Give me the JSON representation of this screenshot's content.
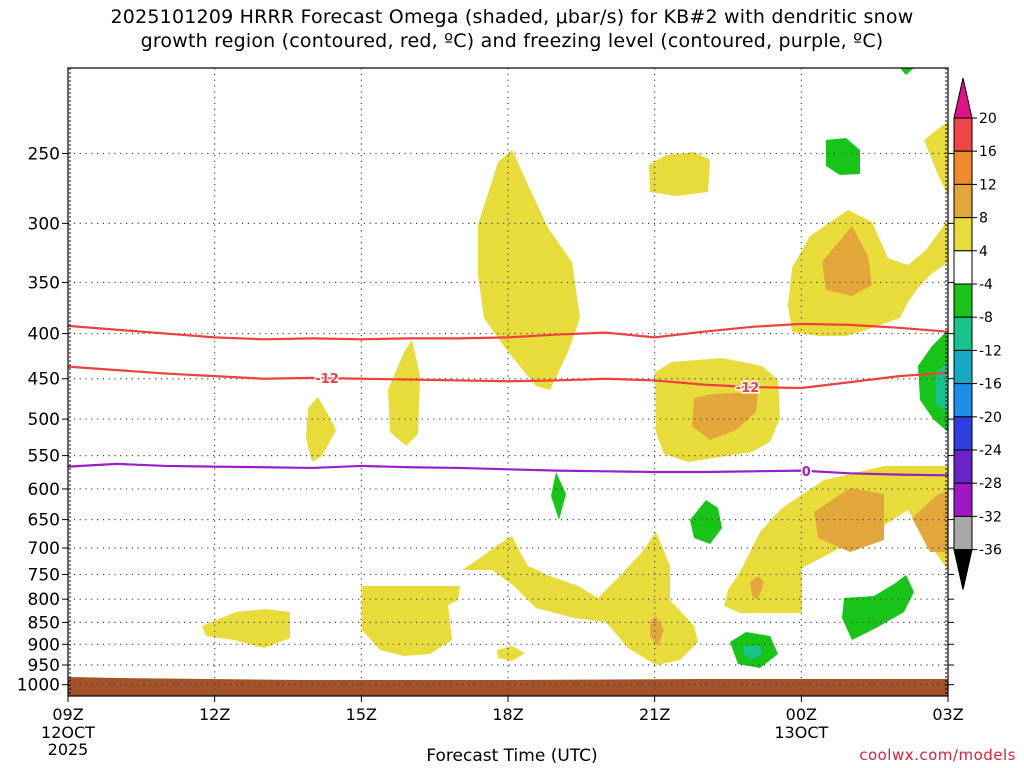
{
  "title": {
    "line1": "2025101209 HRRR Forecast Omega (shaded, μbar/s) for KB#2 with dendritic snow",
    "line2": "growth region (contoured, red, ºC) and freezing level (contoured, purple, ºC)"
  },
  "credit": "coolwx.com/models",
  "chart_data": {
    "type": "time-height contour",
    "xlabel": "Forecast Time (UTC)",
    "ylabel": "",
    "x_ticks": [
      {
        "hour": 0,
        "label": "09Z",
        "sub1": "12OCT",
        "sub2": "2025"
      },
      {
        "hour": 3,
        "label": "12Z",
        "sub1": "",
        "sub2": ""
      },
      {
        "hour": 6,
        "label": "15Z",
        "sub1": "",
        "sub2": ""
      },
      {
        "hour": 9,
        "label": "18Z",
        "sub1": "",
        "sub2": ""
      },
      {
        "hour": 12,
        "label": "21Z",
        "sub1": "",
        "sub2": ""
      },
      {
        "hour": 15,
        "label": "00Z",
        "sub1": "13OCT",
        "sub2": ""
      },
      {
        "hour": 18,
        "label": "03Z",
        "sub1": "",
        "sub2": ""
      }
    ],
    "xlim": [
      0,
      18
    ],
    "ylim_hpa": [
      1030,
      200
    ],
    "y_scale": "log",
    "y_ticks": [
      250,
      300,
      350,
      400,
      450,
      500,
      550,
      600,
      650,
      700,
      750,
      800,
      850,
      900,
      950,
      1000
    ],
    "colorbar": {
      "labels": [
        20,
        16,
        12,
        8,
        4,
        -4,
        -8,
        -12,
        -16,
        -20,
        -24,
        -28,
        -32,
        -36
      ],
      "colors": [
        "#ef4545",
        "#f08a2e",
        "#e3a63a",
        "#e8dc3a",
        "#ffffff",
        "#17c417",
        "#16c38d",
        "#17a9c4",
        "#1f8ee8",
        "#2f3ee0",
        "#6a22c9",
        "#a018c6",
        "#a8a8a8"
      ],
      "top_arrow_color": "#e0128a",
      "bottom_arrow_color": "#000000"
    },
    "contours": [
      {
        "name": "-12",
        "color": "#ef4040",
        "label": "-12",
        "points": [
          [
            0,
            392
          ],
          [
            1,
            396
          ],
          [
            2,
            400
          ],
          [
            3,
            404
          ],
          [
            4,
            406
          ],
          [
            5,
            405
          ],
          [
            6,
            406
          ],
          [
            7,
            405
          ],
          [
            8,
            405
          ],
          [
            9,
            404
          ],
          [
            10,
            401
          ],
          [
            11,
            399
          ],
          [
            12,
            404
          ],
          [
            13,
            398
          ],
          [
            14,
            393
          ],
          [
            15,
            390
          ],
          [
            16,
            391
          ],
          [
            17,
            394
          ],
          [
            18,
            398
          ]
        ]
      },
      {
        "name": "-12",
        "color": "#ef4040",
        "label": "-12",
        "points": [
          [
            0,
            436
          ],
          [
            1,
            440
          ],
          [
            2,
            444
          ],
          [
            3,
            447
          ],
          [
            4,
            450
          ],
          [
            5,
            449
          ],
          [
            6,
            450
          ],
          [
            7,
            451
          ],
          [
            8,
            452
          ],
          [
            9,
            453
          ],
          [
            10,
            452
          ],
          [
            11,
            450
          ],
          [
            12,
            452
          ],
          [
            13,
            457
          ],
          [
            14,
            460
          ],
          [
            15,
            461
          ],
          [
            16,
            454
          ],
          [
            17,
            447
          ],
          [
            18,
            443
          ]
        ]
      },
      {
        "name": "0",
        "color": "#9a1fc4",
        "label": "0",
        "points": [
          [
            0,
            566
          ],
          [
            1,
            562
          ],
          [
            2,
            565
          ],
          [
            3,
            566
          ],
          [
            4,
            567
          ],
          [
            5,
            568
          ],
          [
            6,
            565
          ],
          [
            7,
            567
          ],
          [
            8,
            568
          ],
          [
            9,
            570
          ],
          [
            10,
            572
          ],
          [
            11,
            573
          ],
          [
            12,
            574
          ],
          [
            13,
            574
          ],
          [
            14,
            573
          ],
          [
            15,
            572
          ],
          [
            16,
            576
          ],
          [
            17,
            578
          ],
          [
            18,
            579
          ]
        ]
      }
    ]
  }
}
